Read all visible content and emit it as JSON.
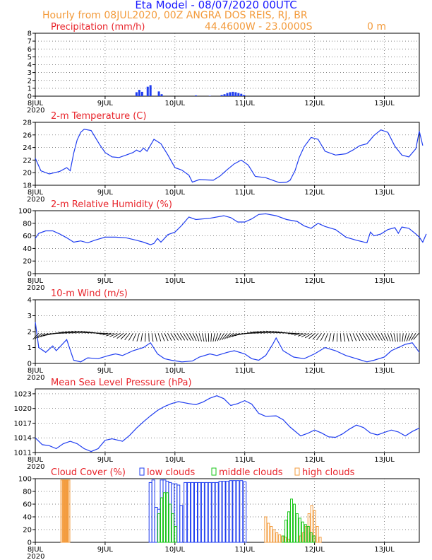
{
  "header": {
    "title": "Eta Model - 08/07/2020 00UTC",
    "subtitle": "Hourly from 08JUL2020, 00Z  ANGRA DOS REIS, RJ, BR",
    "coords": "44.4600W - 23.0000S",
    "elevation": "0   m"
  },
  "colors": {
    "title": "#1a1aff",
    "orange": "#f39b3c",
    "red": "#e8232a",
    "blue": "#1e3cf0",
    "green": "#19c619"
  },
  "xaxis": {
    "ticks": [
      "8JUL",
      "9JUL",
      "10JUL",
      "11JUL",
      "12JUL",
      "13JUL"
    ],
    "year": "2020",
    "range_days": [
      0,
      5.5
    ]
  },
  "chart_data": [
    {
      "type": "bar",
      "title": "Precipitation (mm/h)",
      "ylim": [
        0,
        8
      ],
      "yticks": [
        0,
        1,
        2,
        3,
        4,
        5,
        6,
        7,
        8
      ],
      "bars": [
        [
          1.45,
          0.5
        ],
        [
          1.49,
          0.8
        ],
        [
          1.53,
          0.55
        ],
        [
          1.61,
          1.2
        ],
        [
          1.65,
          1.4
        ],
        [
          1.77,
          0.6
        ],
        [
          1.81,
          0.25
        ],
        [
          2.3,
          0.1
        ],
        [
          2.5,
          0.05
        ],
        [
          2.67,
          0.15
        ],
        [
          2.71,
          0.25
        ],
        [
          2.75,
          0.4
        ],
        [
          2.79,
          0.5
        ],
        [
          2.83,
          0.55
        ],
        [
          2.87,
          0.5
        ],
        [
          2.91,
          0.4
        ],
        [
          2.95,
          0.3
        ],
        [
          2.99,
          0.15
        ]
      ]
    },
    {
      "type": "line",
      "title": "2-m Temperature (C)",
      "ylim": [
        18,
        28
      ],
      "yticks": [
        18,
        20,
        22,
        24,
        26,
        28
      ],
      "points": [
        [
          0,
          22.3
        ],
        [
          0.08,
          20.3
        ],
        [
          0.2,
          19.8
        ],
        [
          0.35,
          20.2
        ],
        [
          0.45,
          20.8
        ],
        [
          0.5,
          20.3
        ],
        [
          0.55,
          23.1
        ],
        [
          0.6,
          25.2
        ],
        [
          0.65,
          26.4
        ],
        [
          0.7,
          26.9
        ],
        [
          0.8,
          26.7
        ],
        [
          0.92,
          24.5
        ],
        [
          1.0,
          23.2
        ],
        [
          1.1,
          22.5
        ],
        [
          1.2,
          22.4
        ],
        [
          1.3,
          22.8
        ],
        [
          1.4,
          23.2
        ],
        [
          1.45,
          23.6
        ],
        [
          1.5,
          23.3
        ],
        [
          1.55,
          23.9
        ],
        [
          1.6,
          23.4
        ],
        [
          1.7,
          25.3
        ],
        [
          1.8,
          24.6
        ],
        [
          1.9,
          22.8
        ],
        [
          2.0,
          20.8
        ],
        [
          2.1,
          20.4
        ],
        [
          2.2,
          19.6
        ],
        [
          2.25,
          18.5
        ],
        [
          2.35,
          18.9
        ],
        [
          2.55,
          18.8
        ],
        [
          2.65,
          19.5
        ],
        [
          2.75,
          20.5
        ],
        [
          2.85,
          21.4
        ],
        [
          2.95,
          22.0
        ],
        [
          3.05,
          21.2
        ],
        [
          3.15,
          19.4
        ],
        [
          3.3,
          19.2
        ],
        [
          3.4,
          18.8
        ],
        [
          3.5,
          18.4
        ],
        [
          3.6,
          18.5
        ],
        [
          3.65,
          18.8
        ],
        [
          3.72,
          20.3
        ],
        [
          3.78,
          22.4
        ],
        [
          3.85,
          24.1
        ],
        [
          3.95,
          25.6
        ],
        [
          4.05,
          25.3
        ],
        [
          4.15,
          23.4
        ],
        [
          4.3,
          22.8
        ],
        [
          4.45,
          23.0
        ],
        [
          4.55,
          23.6
        ],
        [
          4.65,
          24.3
        ],
        [
          4.75,
          24.6
        ],
        [
          4.85,
          25.9
        ],
        [
          4.95,
          26.8
        ],
        [
          5.05,
          26.4
        ],
        [
          5.15,
          24.2
        ],
        [
          5.25,
          22.8
        ],
        [
          5.35,
          22.5
        ],
        [
          5.45,
          23.8
        ],
        [
          5.55,
          24.3
        ],
        [
          5.5,
          26.6
        ]
      ]
    },
    {
      "type": "line",
      "title": "2-m Relative Humidity (%)",
      "ylim": [
        0,
        100
      ],
      "yticks": [
        0,
        20,
        40,
        60,
        80,
        100
      ],
      "points": [
        [
          0,
          56
        ],
        [
          0.05,
          64
        ],
        [
          0.15,
          68
        ],
        [
          0.25,
          68
        ],
        [
          0.35,
          63
        ],
        [
          0.45,
          57
        ],
        [
          0.55,
          50
        ],
        [
          0.65,
          52
        ],
        [
          0.75,
          49
        ],
        [
          0.85,
          53
        ],
        [
          1.0,
          58
        ],
        [
          1.15,
          58
        ],
        [
          1.3,
          57
        ],
        [
          1.45,
          53
        ],
        [
          1.55,
          50
        ],
        [
          1.65,
          46
        ],
        [
          1.7,
          48
        ],
        [
          1.75,
          56
        ],
        [
          1.8,
          50
        ],
        [
          1.9,
          62
        ],
        [
          2.0,
          66
        ],
        [
          2.1,
          77
        ],
        [
          2.2,
          90
        ],
        [
          2.3,
          86
        ],
        [
          2.5,
          88
        ],
        [
          2.7,
          92
        ],
        [
          2.8,
          89
        ],
        [
          2.9,
          82
        ],
        [
          3.0,
          82
        ],
        [
          3.1,
          87
        ],
        [
          3.2,
          94
        ],
        [
          3.3,
          95
        ],
        [
          3.45,
          92
        ],
        [
          3.6,
          86
        ],
        [
          3.75,
          83
        ],
        [
          3.85,
          76
        ],
        [
          3.95,
          72
        ],
        [
          4.05,
          80
        ],
        [
          4.15,
          75
        ],
        [
          4.3,
          70
        ],
        [
          4.45,
          58
        ],
        [
          4.6,
          53
        ],
        [
          4.75,
          49
        ],
        [
          4.8,
          66
        ],
        [
          4.85,
          60
        ],
        [
          4.95,
          63
        ],
        [
          5.05,
          70
        ],
        [
          5.15,
          73
        ],
        [
          5.2,
          64
        ],
        [
          5.25,
          74
        ],
        [
          5.35,
          72
        ],
        [
          5.45,
          63
        ],
        [
          5.55,
          50
        ],
        [
          5.6,
          63
        ],
        [
          5.5,
          58
        ]
      ]
    },
    {
      "type": "line",
      "title": "10-m Wind (m/s)",
      "ylim": [
        0,
        4
      ],
      "yticks": [
        0,
        1,
        2,
        3,
        4
      ],
      "points": [
        [
          0,
          2.6
        ],
        [
          0.05,
          1.0
        ],
        [
          0.15,
          0.7
        ],
        [
          0.25,
          1.1
        ],
        [
          0.3,
          0.8
        ],
        [
          0.45,
          1.5
        ],
        [
          0.55,
          0.2
        ],
        [
          0.65,
          0.1
        ],
        [
          0.75,
          0.35
        ],
        [
          0.9,
          0.3
        ],
        [
          1.05,
          0.5
        ],
        [
          1.15,
          0.6
        ],
        [
          1.25,
          0.5
        ],
        [
          1.4,
          0.8
        ],
        [
          1.55,
          1.0
        ],
        [
          1.65,
          1.3
        ],
        [
          1.75,
          0.6
        ],
        [
          1.85,
          0.3
        ],
        [
          1.95,
          0.2
        ],
        [
          2.1,
          0.1
        ],
        [
          2.25,
          0.15
        ],
        [
          2.35,
          0.4
        ],
        [
          2.5,
          0.6
        ],
        [
          2.6,
          0.5
        ],
        [
          2.75,
          0.7
        ],
        [
          2.85,
          0.8
        ],
        [
          3.0,
          0.6
        ],
        [
          3.1,
          0.3
        ],
        [
          3.2,
          0.2
        ],
        [
          3.3,
          0.5
        ],
        [
          3.4,
          1.2
        ],
        [
          3.45,
          1.6
        ],
        [
          3.55,
          0.8
        ],
        [
          3.7,
          0.4
        ],
        [
          3.85,
          0.3
        ],
        [
          4.0,
          0.6
        ],
        [
          4.15,
          1.0
        ],
        [
          4.3,
          0.8
        ],
        [
          4.45,
          0.5
        ],
        [
          4.6,
          0.3
        ],
        [
          4.75,
          0.1
        ],
        [
          4.85,
          0.2
        ],
        [
          5.0,
          0.4
        ],
        [
          5.1,
          0.8
        ],
        [
          5.2,
          1.0
        ],
        [
          5.3,
          1.2
        ],
        [
          5.4,
          1.3
        ],
        [
          5.5,
          0.7
        ]
      ],
      "wind_vectors": "barb arrows along 1.9 m/s line"
    },
    {
      "type": "line",
      "title": "Mean Sea Level Pressure (hPa)",
      "ylim": [
        1011,
        1024
      ],
      "yticks": [
        1011,
        1014,
        1017,
        1020,
        1023
      ],
      "points": [
        [
          0,
          1014.0
        ],
        [
          0.1,
          1012.6
        ],
        [
          0.2,
          1012.4
        ],
        [
          0.3,
          1011.8
        ],
        [
          0.4,
          1012.8
        ],
        [
          0.5,
          1013.3
        ],
        [
          0.6,
          1012.8
        ],
        [
          0.7,
          1011.8
        ],
        [
          0.8,
          1011.2
        ],
        [
          0.9,
          1011.8
        ],
        [
          1.0,
          1013.5
        ],
        [
          1.1,
          1013.8
        ],
        [
          1.25,
          1013.3
        ],
        [
          1.35,
          1014.5
        ],
        [
          1.45,
          1016.0
        ],
        [
          1.55,
          1017.3
        ],
        [
          1.65,
          1018.5
        ],
        [
          1.75,
          1019.6
        ],
        [
          1.85,
          1020.4
        ],
        [
          1.95,
          1021.0
        ],
        [
          2.05,
          1021.4
        ],
        [
          2.2,
          1021.0
        ],
        [
          2.3,
          1020.8
        ],
        [
          2.4,
          1021.3
        ],
        [
          2.5,
          1022.1
        ],
        [
          2.6,
          1022.6
        ],
        [
          2.7,
          1022.0
        ],
        [
          2.8,
          1020.6
        ],
        [
          2.9,
          1021.0
        ],
        [
          3.0,
          1021.6
        ],
        [
          3.1,
          1020.9
        ],
        [
          3.2,
          1019.0
        ],
        [
          3.3,
          1018.4
        ],
        [
          3.45,
          1018.5
        ],
        [
          3.55,
          1017.7
        ],
        [
          3.65,
          1016.2
        ],
        [
          3.8,
          1014.4
        ],
        [
          3.9,
          1014.9
        ],
        [
          4.0,
          1015.6
        ],
        [
          4.1,
          1015.0
        ],
        [
          4.2,
          1014.2
        ],
        [
          4.3,
          1014.1
        ],
        [
          4.4,
          1014.8
        ],
        [
          4.5,
          1015.8
        ],
        [
          4.6,
          1016.6
        ],
        [
          4.7,
          1016.1
        ],
        [
          4.8,
          1015.0
        ],
        [
          4.9,
          1014.6
        ],
        [
          5.0,
          1015.1
        ],
        [
          5.1,
          1015.6
        ],
        [
          5.2,
          1015.2
        ],
        [
          5.3,
          1014.4
        ],
        [
          5.4,
          1015.3
        ],
        [
          5.5,
          1016.0
        ]
      ]
    },
    {
      "type": "bar",
      "title": "Cloud Cover (%)",
      "legend": [
        "low clouds",
        "middle clouds",
        "high clouds"
      ],
      "ylim": [
        0,
        100
      ],
      "yticks": [
        0,
        20,
        40,
        60,
        80,
        100
      ],
      "high": [
        [
          0.38,
          98
        ],
        [
          0.4,
          98
        ],
        [
          0.42,
          98
        ],
        [
          0.44,
          98
        ],
        [
          0.46,
          98
        ],
        [
          0.48,
          98
        ],
        [
          3.3,
          40
        ],
        [
          3.34,
          30
        ],
        [
          3.38,
          25
        ],
        [
          3.42,
          20
        ],
        [
          3.46,
          15
        ],
        [
          3.5,
          12
        ],
        [
          3.54,
          10
        ],
        [
          3.58,
          8
        ],
        [
          3.62,
          5
        ],
        [
          3.8,
          10
        ],
        [
          3.84,
          15
        ],
        [
          3.88,
          25
        ],
        [
          3.92,
          45
        ],
        [
          3.96,
          58
        ],
        [
          4.0,
          50
        ],
        [
          4.04,
          25
        ],
        [
          4.08,
          8
        ]
      ],
      "low": [
        [
          1.65,
          94
        ],
        [
          1.69,
          98
        ],
        [
          1.73,
          55
        ],
        [
          1.77,
          52
        ],
        [
          1.81,
          98
        ],
        [
          1.85,
          98
        ],
        [
          1.89,
          96
        ],
        [
          1.93,
          94
        ],
        [
          1.97,
          92
        ],
        [
          2.01,
          92
        ],
        [
          2.05,
          90
        ],
        [
          2.09,
          58
        ],
        [
          2.15,
          94
        ],
        [
          2.2,
          94
        ],
        [
          2.25,
          94
        ],
        [
          2.3,
          94
        ],
        [
          2.35,
          94
        ],
        [
          2.4,
          94
        ],
        [
          2.45,
          94
        ],
        [
          2.5,
          94
        ],
        [
          2.55,
          94
        ],
        [
          2.6,
          94
        ],
        [
          2.65,
          96
        ],
        [
          2.7,
          96
        ],
        [
          2.75,
          96
        ],
        [
          2.8,
          97
        ],
        [
          2.85,
          97
        ],
        [
          2.9,
          97
        ],
        [
          2.95,
          97
        ],
        [
          3.0,
          95
        ]
      ],
      "middle": [
        [
          1.77,
          45
        ],
        [
          1.81,
          70
        ],
        [
          1.85,
          78
        ],
        [
          1.89,
          78
        ],
        [
          1.93,
          60
        ],
        [
          1.97,
          45
        ],
        [
          2.01,
          25
        ],
        [
          3.55,
          10
        ],
        [
          3.59,
          35
        ],
        [
          3.63,
          48
        ],
        [
          3.67,
          68
        ],
        [
          3.71,
          60
        ],
        [
          3.75,
          45
        ],
        [
          3.79,
          38
        ],
        [
          3.83,
          32
        ],
        [
          3.87,
          28
        ],
        [
          3.91,
          25
        ],
        [
          3.95,
          15
        ],
        [
          3.99,
          10
        ]
      ]
    }
  ]
}
